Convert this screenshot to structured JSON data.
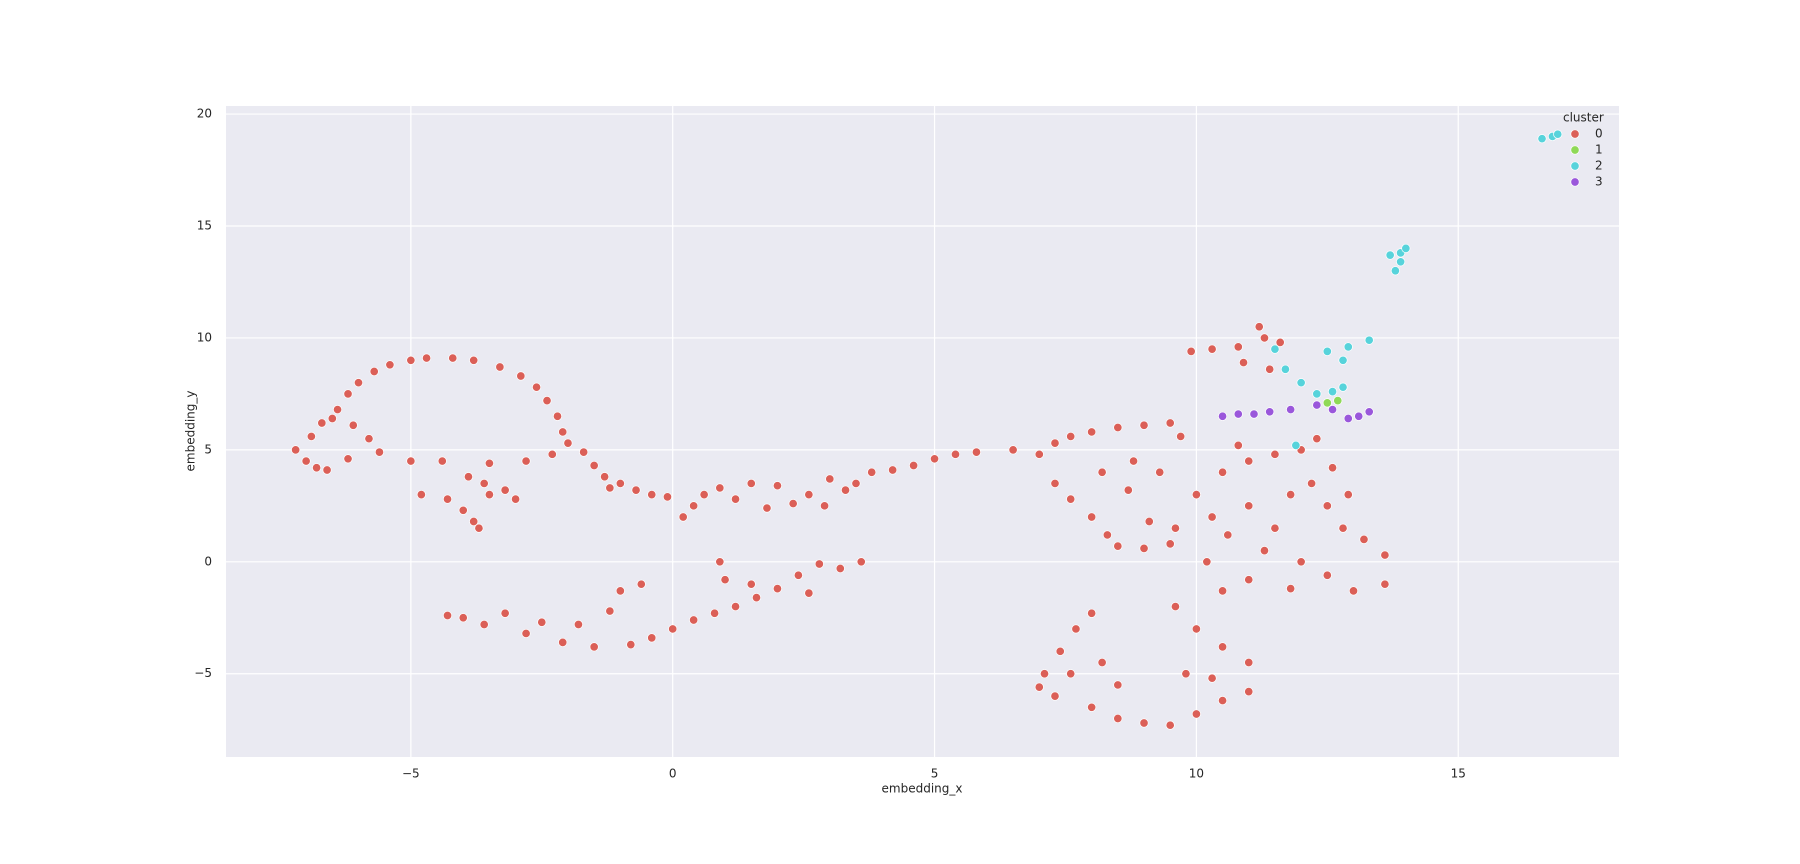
{
  "chart_data": {
    "type": "scatter",
    "x_label": "embedding_x",
    "y_label": "embedding_y",
    "legend_title": "cluster",
    "legend": "upper right",
    "grid": true,
    "xlim": [
      -8.53,
      18.07
    ],
    "ylim": [
      -8.72,
      20.36
    ],
    "xticks": [
      {
        "value": -5,
        "label": "−5"
      },
      0,
      5,
      10,
      15
    ],
    "yticks": [
      {
        "value": -5,
        "label": "−5"
      },
      0,
      5,
      10,
      15,
      20
    ],
    "series": [
      {
        "name": "0",
        "color": "#db5f57",
        "x": [
          -7.2,
          -7.0,
          -6.8,
          -6.9,
          -6.7,
          -6.4,
          -6.2,
          -6.0,
          -5.7,
          -5.4,
          -5.0,
          -4.7,
          -4.2,
          -3.8,
          -3.3,
          -2.9,
          -2.6,
          -2.4,
          -2.2,
          -2.1,
          -6.5,
          -6.1,
          -5.8,
          -5.6,
          -6.2,
          -6.6,
          -5.0,
          -4.4,
          -3.5,
          -2.8,
          -2.3,
          -2.0,
          -4.8,
          -4.3,
          -4.0,
          -3.8,
          -3.7,
          -3.5,
          -3.2,
          -3.6,
          -3.0,
          -3.9,
          -1.7,
          -1.5,
          -1.3,
          -1.0,
          -0.7,
          -0.4,
          -0.1,
          -1.2,
          0.2,
          0.4,
          0.6,
          0.9,
          1.2,
          1.5,
          1.8,
          2.0,
          2.3,
          2.6,
          2.9,
          3.0,
          3.5,
          3.8,
          4.2,
          4.6,
          5.0,
          5.4,
          5.8,
          3.3,
          -4.3,
          -4.0,
          -3.6,
          -3.2,
          -2.8,
          -2.5,
          -2.1,
          -1.8,
          -1.5,
          -1.2,
          -1.0,
          -0.6,
          -0.8,
          -0.4,
          0.0,
          0.4,
          0.8,
          1.0,
          1.2,
          1.6,
          0.9,
          2.0,
          2.4,
          2.8,
          3.2,
          3.6,
          1.5,
          2.6,
          6.5,
          7.0,
          7.3,
          7.6,
          8.0,
          8.5,
          9.0,
          9.5,
          9.7,
          7.3,
          7.6,
          8.0,
          8.3,
          8.5,
          9.0,
          9.5,
          8.7,
          9.1,
          9.6,
          8.2,
          8.8,
          10.0,
          10.3,
          10.6,
          10.2,
          10.5,
          11.0,
          11.5,
          12.0,
          12.3,
          11.0,
          11.5,
          11.8,
          12.2,
          12.5,
          12.8,
          13.2,
          13.6,
          12.0,
          11.0,
          11.8,
          12.5,
          13.0,
          13.6,
          10.5,
          12.9,
          11.3,
          9.3,
          10.8,
          12.6,
          8.0,
          7.7,
          7.4,
          7.1,
          7.0,
          7.3,
          7.6,
          8.0,
          8.5,
          9.0,
          9.5,
          10.0,
          10.5,
          11.0,
          11.0,
          10.5,
          10.0,
          9.6,
          8.5,
          9.8,
          10.3,
          8.2,
          9.9,
          10.3,
          10.8,
          11.2,
          11.3,
          10.9,
          11.4,
          11.6
        ],
        "y": [
          5.0,
          4.5,
          4.2,
          5.6,
          6.2,
          6.8,
          7.5,
          8.0,
          8.5,
          8.8,
          9.0,
          9.1,
          9.1,
          9.0,
          8.7,
          8.3,
          7.8,
          7.2,
          6.5,
          5.8,
          6.4,
          6.1,
          5.5,
          4.9,
          4.6,
          4.1,
          4.5,
          4.5,
          4.4,
          4.5,
          4.8,
          5.3,
          3.0,
          2.8,
          2.3,
          1.8,
          1.5,
          3.0,
          3.2,
          3.5,
          2.8,
          3.8,
          4.9,
          4.3,
          3.8,
          3.5,
          3.2,
          3.0,
          2.9,
          3.3,
          2.0,
          2.5,
          3.0,
          3.3,
          2.8,
          3.5,
          2.4,
          3.4,
          2.6,
          3.0,
          2.5,
          3.7,
          3.5,
          4.0,
          4.1,
          4.3,
          4.6,
          4.8,
          4.9,
          3.2,
          -2.4,
          -2.5,
          -2.8,
          -2.3,
          -3.2,
          -2.7,
          -3.6,
          -2.8,
          -3.8,
          -2.2,
          -1.3,
          -1.0,
          -3.7,
          -3.4,
          -3.0,
          -2.6,
          -2.3,
          -0.8,
          -2.0,
          -1.6,
          0.0,
          -1.2,
          -0.6,
          -0.1,
          -0.3,
          0.0,
          -1.0,
          -1.4,
          5.0,
          4.8,
          5.3,
          5.6,
          5.8,
          6.0,
          6.1,
          6.2,
          5.6,
          3.5,
          2.8,
          2.0,
          1.2,
          0.7,
          0.6,
          0.8,
          3.2,
          1.8,
          1.5,
          4.0,
          4.5,
          3.0,
          2.0,
          1.2,
          0.0,
          4.0,
          4.5,
          4.8,
          5.0,
          5.5,
          2.5,
          1.5,
          3.0,
          3.5,
          2.5,
          1.5,
          1.0,
          0.3,
          0.0,
          -0.8,
          -1.2,
          -0.6,
          -1.3,
          -1.0,
          -1.3,
          3.0,
          0.5,
          4.0,
          5.2,
          4.2,
          -2.3,
          -3.0,
          -4.0,
          -5.0,
          -5.6,
          -6.0,
          -5.0,
          -6.5,
          -7.0,
          -7.2,
          -7.3,
          -6.8,
          -6.2,
          -5.8,
          -4.5,
          -3.8,
          -3.0,
          -2.0,
          -5.5,
          -5.0,
          -5.2,
          -4.5,
          9.4,
          9.5,
          9.6,
          10.5,
          10.0,
          8.9,
          8.6,
          9.8
        ]
      },
      {
        "name": "1",
        "color": "#8fd957",
        "x": [
          12.5,
          12.7
        ],
        "y": [
          7.1,
          7.2
        ]
      },
      {
        "name": "2",
        "color": "#57d3db",
        "x": [
          16.6,
          16.8,
          16.9,
          13.7,
          13.9,
          14.0,
          13.9,
          13.8,
          11.5,
          11.7,
          12.0,
          12.3,
          12.6,
          12.8,
          12.5,
          12.9,
          13.3,
          12.8,
          11.9
        ],
        "y": [
          18.9,
          19.0,
          19.1,
          13.7,
          13.8,
          14.0,
          13.4,
          13.0,
          9.5,
          8.6,
          8.0,
          7.5,
          7.6,
          7.8,
          9.4,
          9.6,
          9.9,
          9.0,
          5.2
        ]
      },
      {
        "name": "3",
        "color": "#9a57db",
        "x": [
          10.5,
          10.8,
          11.1,
          11.4,
          11.8,
          12.3,
          12.6,
          12.9,
          13.1,
          13.3
        ],
        "y": [
          6.5,
          6.6,
          6.6,
          6.7,
          6.8,
          7.0,
          6.8,
          6.4,
          6.5,
          6.7
        ]
      }
    ]
  }
}
